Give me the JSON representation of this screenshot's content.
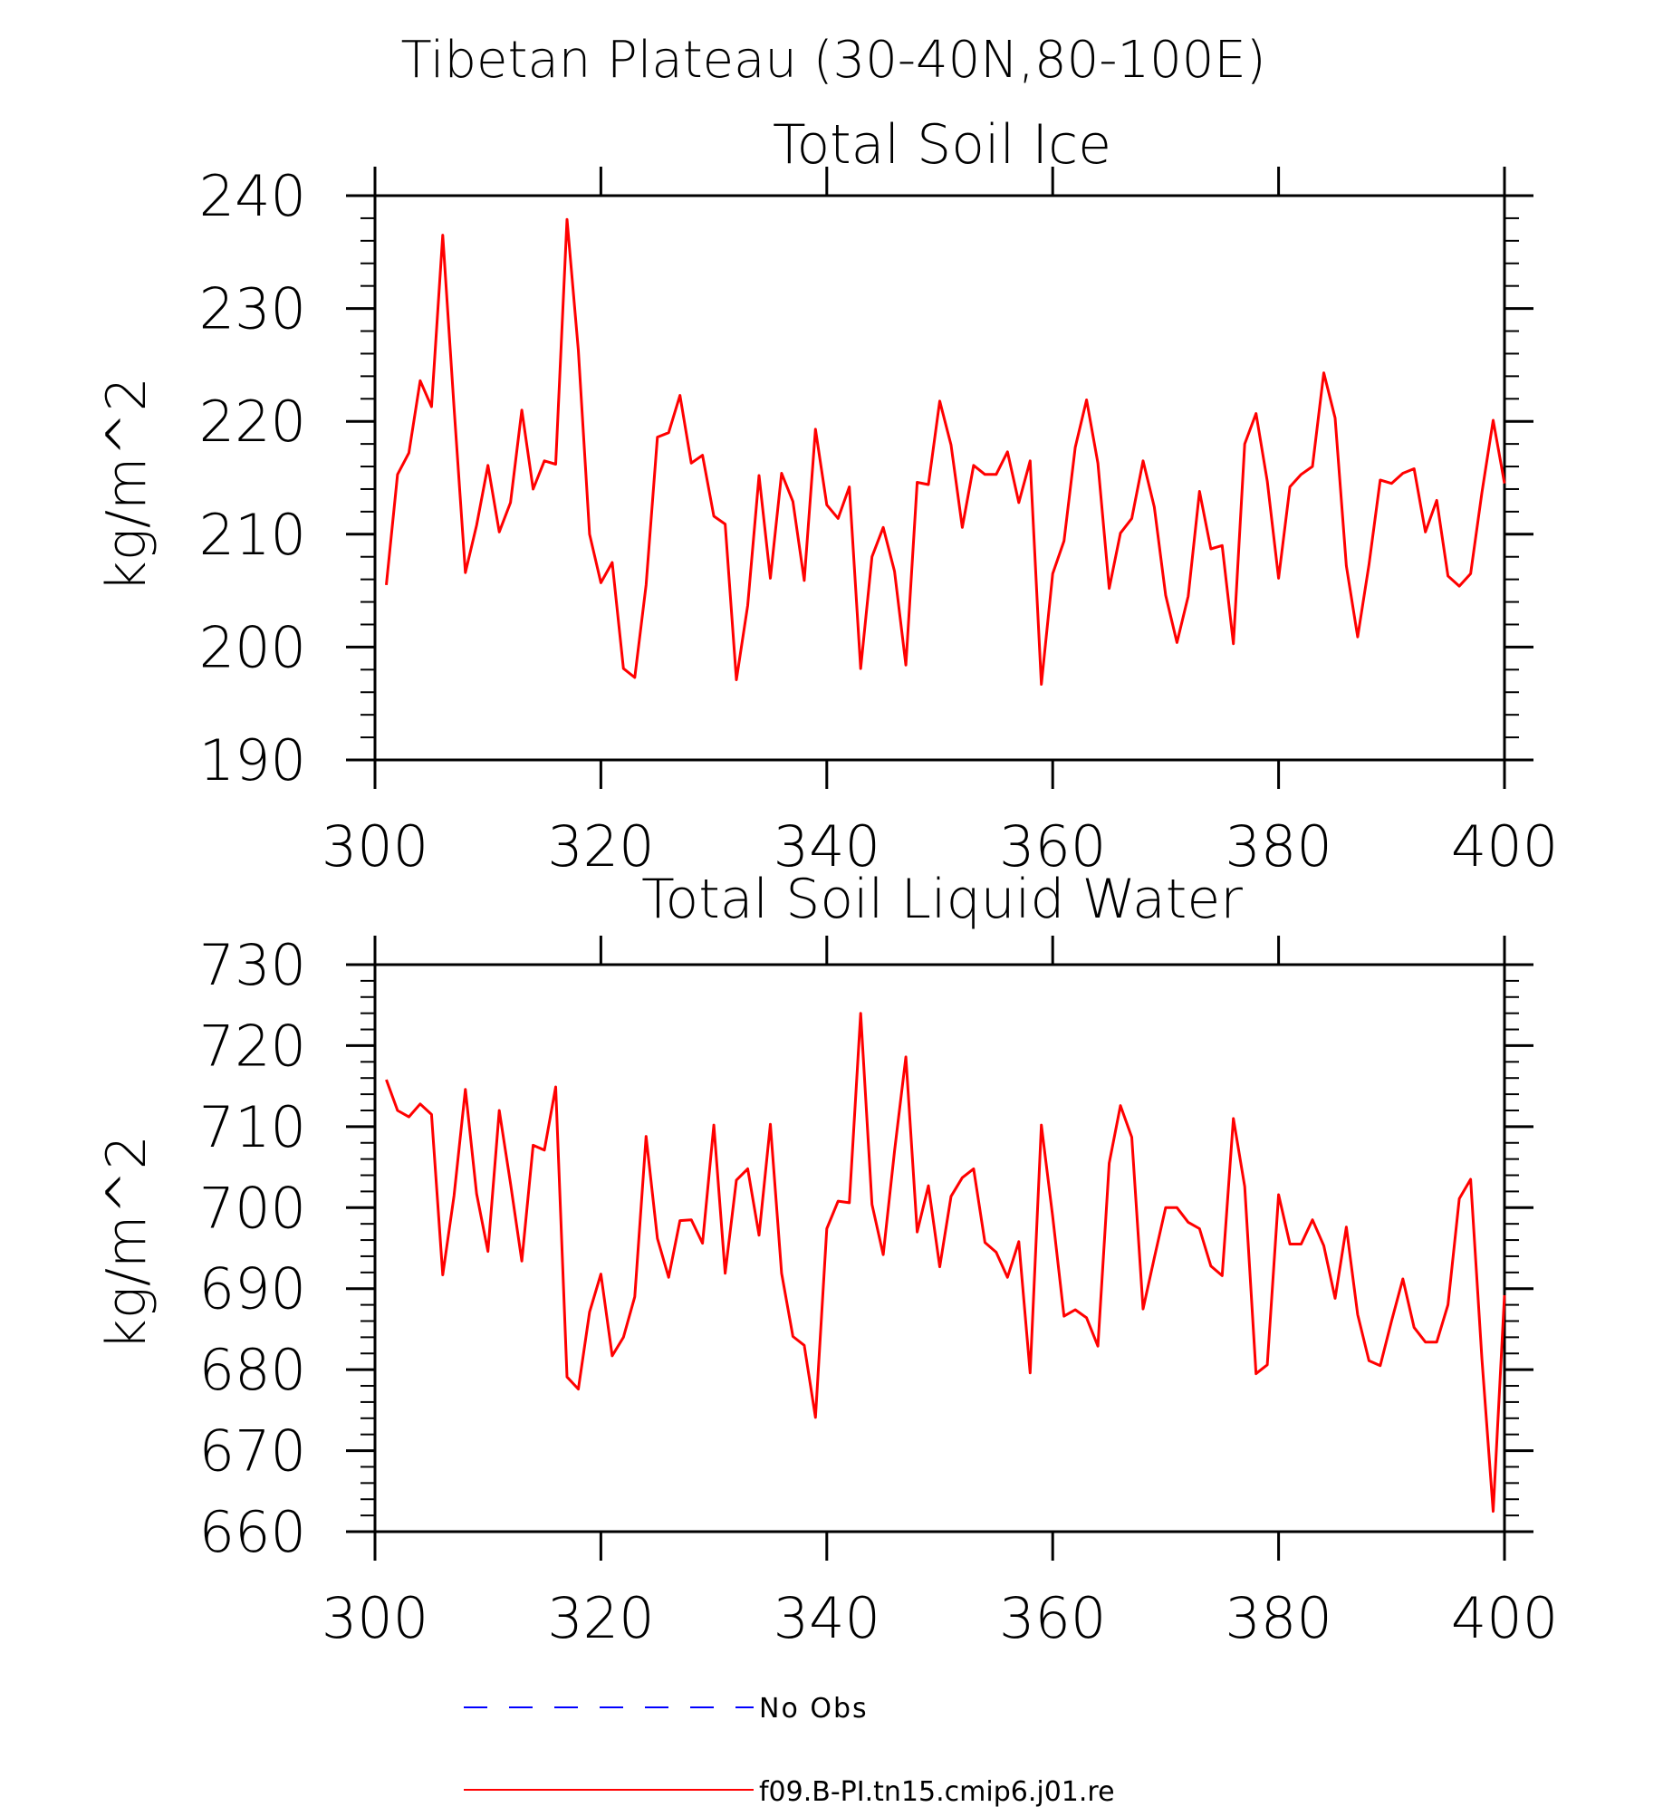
{
  "figure": {
    "title": "Tibetan Plateau (30-40N,80-100E)"
  },
  "legend": {
    "items": [
      {
        "label": "No Obs",
        "color": "#0000ff",
        "style": "dashed"
      },
      {
        "label": "f09.B-PI.tn15.cmip6.j01.re",
        "color": "#ff0000",
        "style": "solid"
      }
    ]
  },
  "chart_data": [
    {
      "type": "line",
      "title": "Total Soil Ice",
      "xlabel": "",
      "ylabel": "kg/m^2",
      "xlim": [
        300,
        400
      ],
      "ylim": [
        190,
        240
      ],
      "xticks": [
        300,
        320,
        340,
        360,
        380,
        400
      ],
      "yticks": [
        190,
        200,
        210,
        220,
        230,
        240
      ],
      "series": [
        {
          "color": "#ff0000",
          "x_start": 301,
          "x_step": 1,
          "values": [
            205.5,
            215.3,
            217.2,
            223.6,
            221.3,
            236.5,
            221.2,
            206.6,
            210.8,
            216.1,
            210.2,
            212.8,
            221.0,
            214.0,
            216.5,
            216.2,
            237.9,
            226.3,
            210.0,
            205.7,
            207.5,
            198.1,
            197.3,
            205.5,
            218.6,
            219.0,
            222.3,
            216.3,
            217.0,
            211.6,
            210.9,
            197.1,
            203.7,
            215.2,
            206.1,
            215.4,
            212.9,
            205.9,
            219.3,
            212.6,
            211.4,
            214.2,
            198.1,
            208.0,
            210.6,
            206.7,
            198.4,
            214.6,
            214.4,
            221.8,
            217.9,
            210.6,
            216.1,
            215.3,
            215.3,
            217.3,
            212.8,
            216.5,
            196.7,
            206.5,
            209.4,
            217.7,
            221.9,
            216.3,
            205.2,
            210.1,
            211.4,
            216.5,
            212.4,
            204.6,
            200.4,
            204.5,
            213.8,
            208.7,
            209.0,
            200.3,
            218.0,
            220.7,
            214.7,
            206.1,
            214.2,
            215.3,
            216.0,
            224.3,
            220.3,
            207.2,
            200.9,
            207.3,
            214.8,
            214.5,
            215.4,
            215.8,
            210.2,
            213.0,
            206.3,
            205.4,
            206.5,
            213.7,
            220.1,
            214.5
          ]
        }
      ]
    },
    {
      "type": "line",
      "title": "Total Soil Liquid Water",
      "xlabel": "",
      "ylabel": "kg/m^2",
      "xlim": [
        300,
        400
      ],
      "ylim": [
        660,
        730
      ],
      "xticks": [
        300,
        320,
        340,
        360,
        380,
        400
      ],
      "yticks": [
        660,
        670,
        680,
        690,
        700,
        710,
        720,
        730
      ],
      "series": [
        {
          "color": "#ff0000",
          "x_start": 301,
          "x_step": 1,
          "values": [
            715.8,
            712.0,
            711.2,
            712.8,
            711.5,
            691.7,
            701.5,
            714.6,
            701.7,
            694.6,
            712.0,
            703.0,
            693.4,
            707.7,
            707.1,
            714.9,
            679.1,
            677.6,
            687.1,
            691.8,
            681.7,
            684.0,
            689.0,
            708.8,
            696.2,
            691.4,
            698.4,
            698.5,
            695.6,
            710.2,
            691.9,
            703.4,
            704.8,
            696.6,
            710.3,
            691.9,
            684.1,
            683.0,
            674.1,
            697.4,
            700.8,
            700.6,
            724.0,
            700.4,
            694.2,
            707.0,
            718.6,
            697.0,
            702.7,
            692.7,
            701.4,
            703.7,
            704.8,
            695.7,
            694.5,
            691.4,
            695.8,
            679.6,
            710.2,
            698.9,
            686.6,
            687.4,
            686.4,
            682.9,
            705.5,
            712.6,
            708.7,
            687.5,
            693.8,
            700.0,
            700.0,
            698.2,
            697.4,
            692.8,
            691.6,
            711.0,
            702.6,
            679.5,
            680.6,
            701.6,
            695.5,
            695.5,
            698.5,
            695.3,
            688.8,
            697.6,
            686.8,
            681.1,
            680.5,
            686.0,
            691.2,
            685.2,
            683.4,
            683.4,
            688.0,
            701.1,
            703.5,
            681.3,
            662.5,
            689.2
          ]
        }
      ]
    }
  ]
}
